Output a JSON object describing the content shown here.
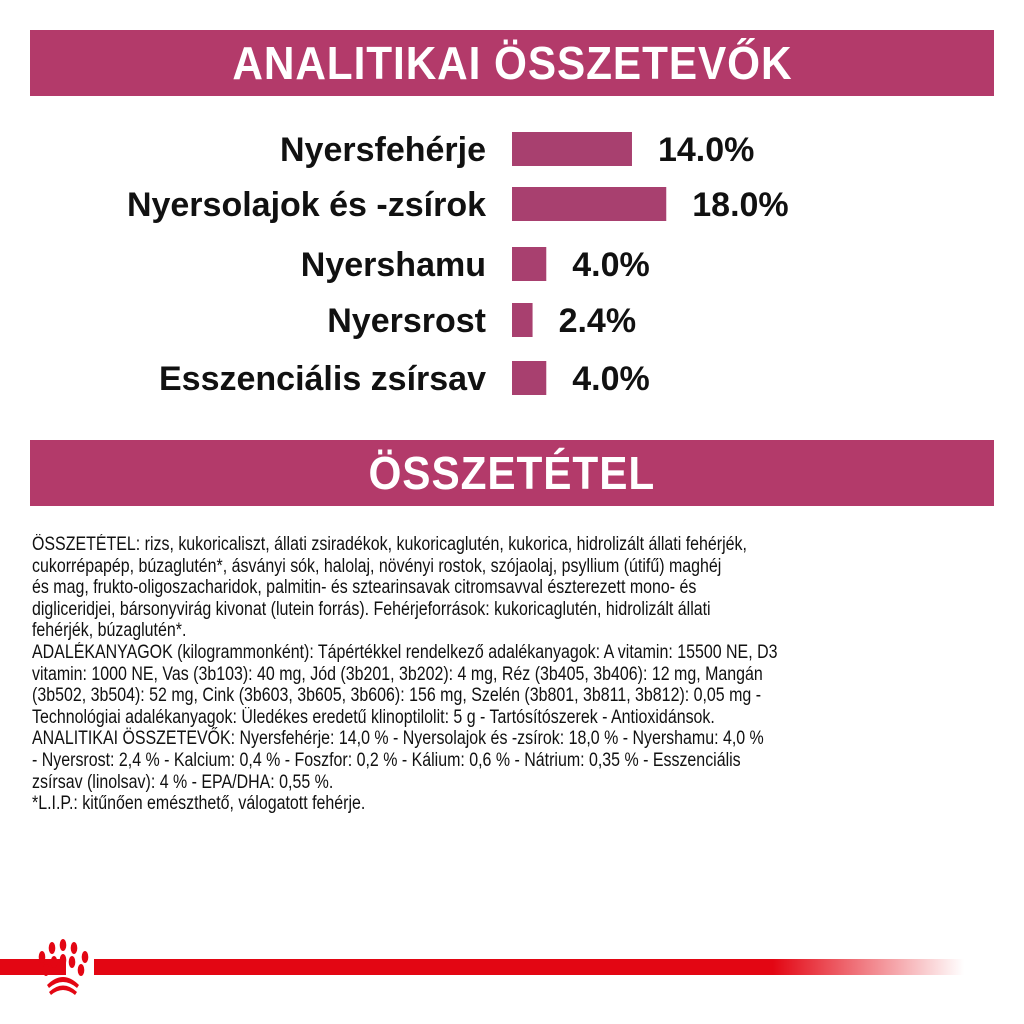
{
  "header": {
    "title": "ANALITIKAI ÖSSZETEVŐK"
  },
  "chart_data": {
    "type": "bar",
    "orientation": "horizontal",
    "categories": [
      "Nyersfehérje",
      "Nyersolajok és -zsírok",
      "Nyershamu",
      "Nyersrost",
      "Esszenciális zsírsav"
    ],
    "values": [
      14.0,
      18.0,
      4.0,
      2.4,
      4.0
    ],
    "value_labels": [
      "14.0%",
      "18.0%",
      "4.0%",
      "2.4%",
      "4.0%"
    ],
    "unit": "%",
    "bar_color": "#a8406f",
    "grid": false
  },
  "section2": {
    "title": "ÖSSZETÉTEL"
  },
  "composition_lines": [
    "ÖSSZETÉTEL: rizs, kukoricaliszt, állati zsiradékok, kukoricaglutén, kukorica, hidrolizált állati fehérjék,",
    "cukorrépapép, búzaglutén*, ásványi sók, halolaj, növényi rostok, szójaolaj, psyllium (útifű) maghéj",
    "és mag, frukto-oligoszacharidok, palmitin- és sztearinsavak citromsavval észterezett mono- és",
    "digliceridjei, bársonyvirág kivonat (lutein forrás). Fehérjeforrások: kukoricaglutén, hidrolizált állati",
    "fehérjék, búzaglutén*.",
    "ADALÉKANYAGOK (kilogrammonként): Tápértékkel rendelkező adalékanyagok: A vitamin: 15500 NE, D3",
    "vitamin: 1000 NE, Vas (3b103): 40 mg, Jód (3b201, 3b202): 4 mg, Réz (3b405, 3b406): 12 mg, Mangán",
    "(3b502, 3b504): 52 mg, Cink (3b603, 3b605, 3b606): 156 mg, Szelén (3b801, 3b811, 3b812): 0,05 mg -",
    "Technológiai adalékanyagok: Üledékes eredetű klinoptilolit: 5 g - Tartósítószerek - Antioxidánsok.",
    "ANALITIKAI ÖSSZETEVŐK: Nyersfehérje: 14,0 % - Nyersolajok és -zsírok: 18,0 % - Nyershamu: 4,0 %",
    "- Nyersrost: 2,4 % - Kalcium: 0,4 % - Foszfor: 0,2 % - Kálium: 0,6 % - Nátrium: 0,35 % - Esszenciális",
    "zsírsav (linolsav): 4 % - EPA/DHA: 0,55 %.",
    "*L.I.P.: kitűnően emészthető, válogatott fehérje."
  ],
  "colors": {
    "banner": "#b33a6a",
    "brand_red": "#e30613"
  },
  "footer": {
    "logo": "royal-canin-paw-crown-icon"
  }
}
